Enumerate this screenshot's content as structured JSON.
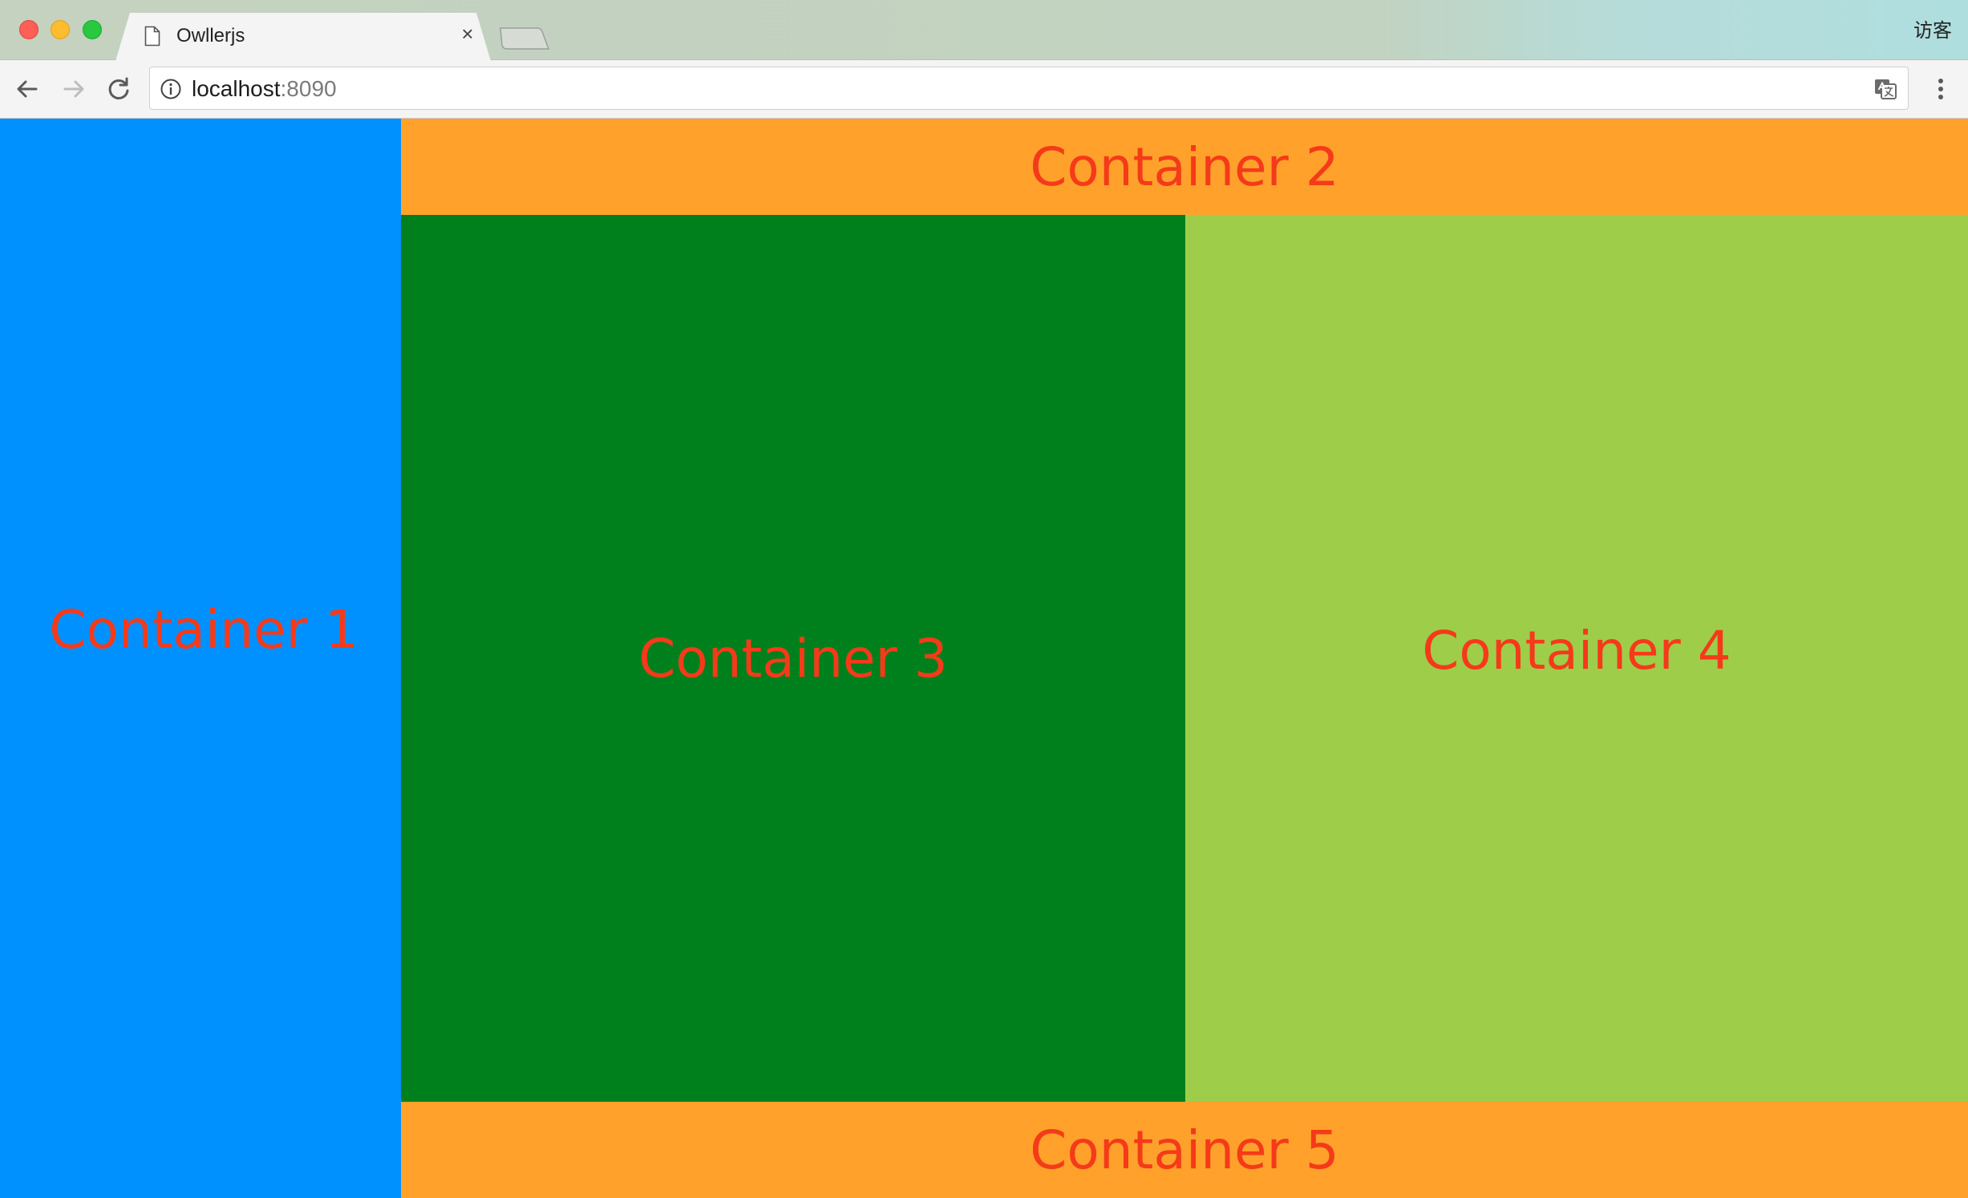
{
  "browser": {
    "tab": {
      "title": "Owllerjs",
      "close_glyph": "×",
      "icon": "document-icon"
    },
    "profile_name": "访客",
    "address_bar": {
      "host": "localhost",
      "port": ":8090"
    },
    "icons": {
      "back": "arrow-left-icon",
      "forward": "arrow-right-icon",
      "reload": "reload-icon",
      "info": "info-icon",
      "translate": "translate-icon",
      "menu": "kebab-menu-icon"
    },
    "traffic_lights": {
      "close_color": "#fe5f57",
      "minimize_color": "#febc2e",
      "maximize_color": "#28c840"
    }
  },
  "page": {
    "text_color": "#f53a1a",
    "containers": [
      {
        "label": "Container 1",
        "color": "#0091ff"
      },
      {
        "label": "Container 2",
        "color": "#ffa12b"
      },
      {
        "label": "Container 3",
        "color": "#00801c"
      },
      {
        "label": "Container 4",
        "color": "#9ecd4a"
      },
      {
        "label": "Container 5",
        "color": "#ffa12b"
      }
    ]
  }
}
